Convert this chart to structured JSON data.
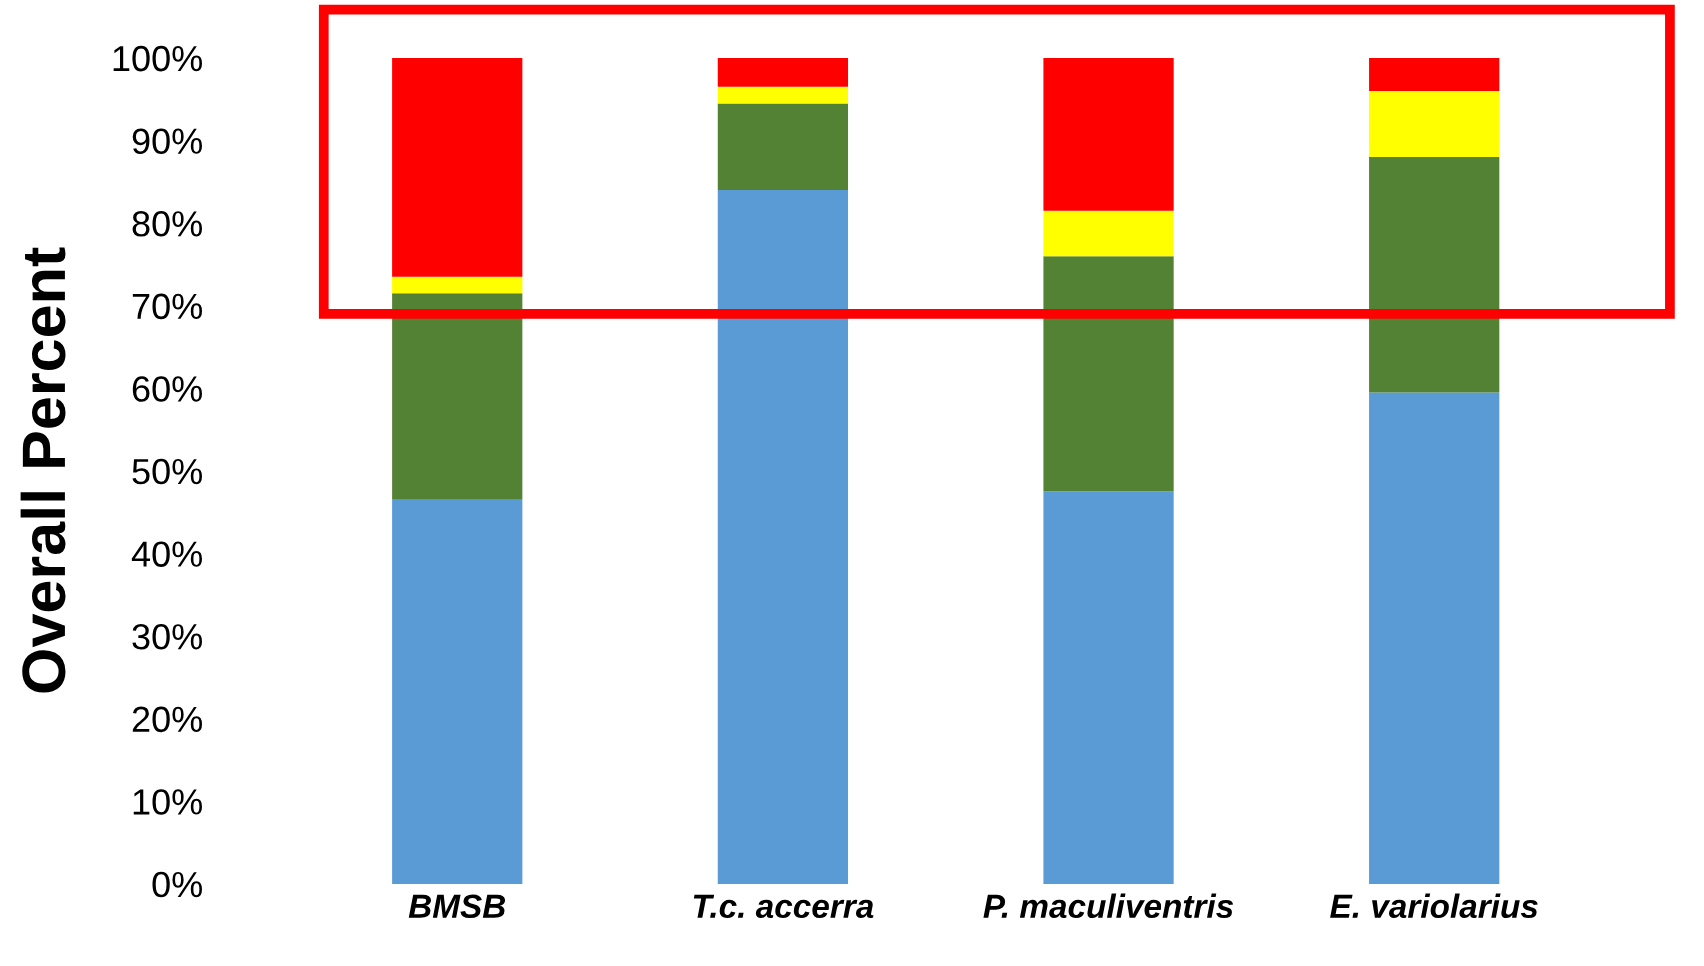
{
  "chart_data": {
    "type": "bar",
    "stacked": true,
    "ylabel": "Overall Percent",
    "categories": [
      "BMSB",
      "T.c. accerra",
      "P. maculiventris",
      "E. variolarius"
    ],
    "series": [
      {
        "color": "#5b9bd5",
        "values": [
          46.5,
          84,
          47.5,
          59.5
        ]
      },
      {
        "color": "#548235",
        "values": [
          25,
          10.5,
          28.5,
          28.5
        ]
      },
      {
        "color": "#ffff00",
        "values": [
          2,
          2,
          5.5,
          8
        ]
      },
      {
        "color": "#ff0000",
        "values": [
          26.5,
          3.5,
          18.5,
          4
        ]
      }
    ],
    "ylim": [
      0,
      100
    ],
    "yticks": [
      {
        "value": 0,
        "label": "0%"
      },
      {
        "value": 10,
        "label": "10%"
      },
      {
        "value": 20,
        "label": "20%"
      },
      {
        "value": 30,
        "label": "30%"
      },
      {
        "value": 40,
        "label": "40%"
      },
      {
        "value": 50,
        "label": "50%"
      },
      {
        "value": 60,
        "label": "60%"
      },
      {
        "value": 70,
        "label": "70%"
      },
      {
        "value": 80,
        "label": "80%"
      },
      {
        "value": 90,
        "label": "90%"
      },
      {
        "value": 100,
        "label": "100%"
      }
    ],
    "grid": false
  }
}
